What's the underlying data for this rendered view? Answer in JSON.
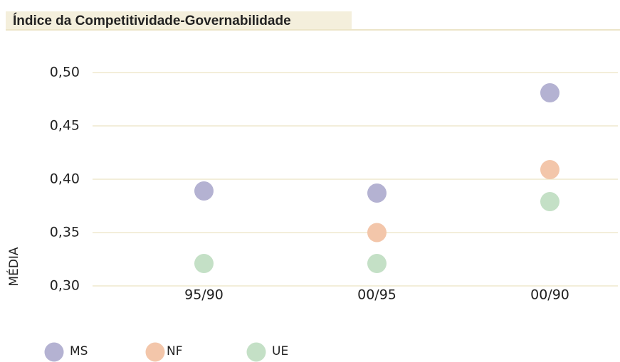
{
  "chart_data": {
    "type": "dot",
    "title": "Índice da Competitividade-Governabilidade",
    "ylabel": "MÉDIA",
    "categories": [
      "95/90",
      "00/95",
      "00/90"
    ],
    "series": [
      {
        "name": "MS",
        "color": "#b4b2d2",
        "values": [
          0.389,
          0.387,
          0.481
        ]
      },
      {
        "name": "NF",
        "color": "#f3c6aa",
        "values": [
          null,
          0.35,
          0.409
        ]
      },
      {
        "name": "UE",
        "color": "#c4e0c6",
        "values": [
          0.321,
          0.321,
          0.379
        ]
      }
    ],
    "ylim": [
      0.3,
      0.5
    ],
    "yticks": [
      {
        "value": 0.3,
        "label": "0,30"
      },
      {
        "value": 0.35,
        "label": "0,35"
      },
      {
        "value": 0.4,
        "label": "0,40"
      },
      {
        "value": 0.45,
        "label": "0,45"
      },
      {
        "value": 0.5,
        "label": "0,50"
      }
    ],
    "grid": true
  }
}
